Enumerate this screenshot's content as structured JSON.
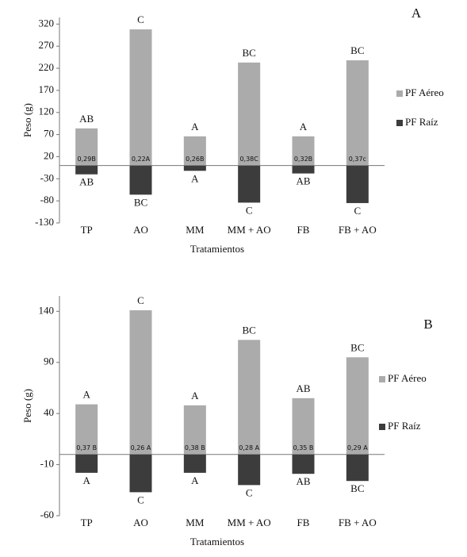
{
  "chart_data": [
    {
      "type": "bar",
      "panel_label": "A",
      "xlabel": "Tratamientos",
      "ylabel": "Peso (g)",
      "categories": [
        "TP",
        "AO",
        "MM",
        "MM + AO",
        "FB",
        "FB + AO"
      ],
      "series": [
        {
          "name": "PF Aéreo",
          "color": "#ababab",
          "values": [
            84,
            308,
            66,
            233,
            66,
            238
          ]
        },
        {
          "name": "PF Raíz",
          "color": "#3c3c3c",
          "values": [
            -20,
            -66,
            -12,
            -84,
            -18,
            -85
          ]
        }
      ],
      "top_letters": [
        "AB",
        "C",
        "A",
        "BC",
        "A",
        "BC"
      ],
      "bottom_letters": [
        "AB",
        "BC",
        "A",
        "C",
        "AB",
        "C"
      ],
      "inner_labels": [
        "0,29B",
        "0,22A",
        "0,26B",
        "0,38C",
        "0,32B",
        "0,37c"
      ],
      "ylim": [
        -130,
        335
      ],
      "yticks": [
        -130,
        -80,
        -30,
        20,
        70,
        120,
        170,
        220,
        270,
        320
      ]
    },
    {
      "type": "bar",
      "panel_label": "B",
      "xlabel": "Tratamientos",
      "ylabel": "Peso (g)",
      "categories": [
        "TP",
        "AO",
        "MM",
        "MM + AO",
        "FB",
        "FB + AO"
      ],
      "series": [
        {
          "name": "PF Aéreo",
          "color": "#ababab",
          "values": [
            49,
            141,
            48,
            112,
            55,
            95
          ]
        },
        {
          "name": "PF Raíz",
          "color": "#3c3c3c",
          "values": [
            -18,
            -37,
            -18,
            -30,
            -19,
            -26
          ]
        }
      ],
      "top_letters": [
        "A",
        "C",
        "A",
        "BC",
        "AB",
        "BC"
      ],
      "bottom_letters": [
        "A",
        "C",
        "A",
        "C",
        "AB",
        "BC"
      ],
      "inner_labels": [
        "0,37 B",
        "0,26 A",
        "0,38 B",
        "0,28 A",
        "0,35 B",
        "0,29 A"
      ],
      "ylim": [
        -60,
        155
      ],
      "yticks": [
        -60,
        -10,
        40,
        90,
        140
      ]
    }
  ]
}
